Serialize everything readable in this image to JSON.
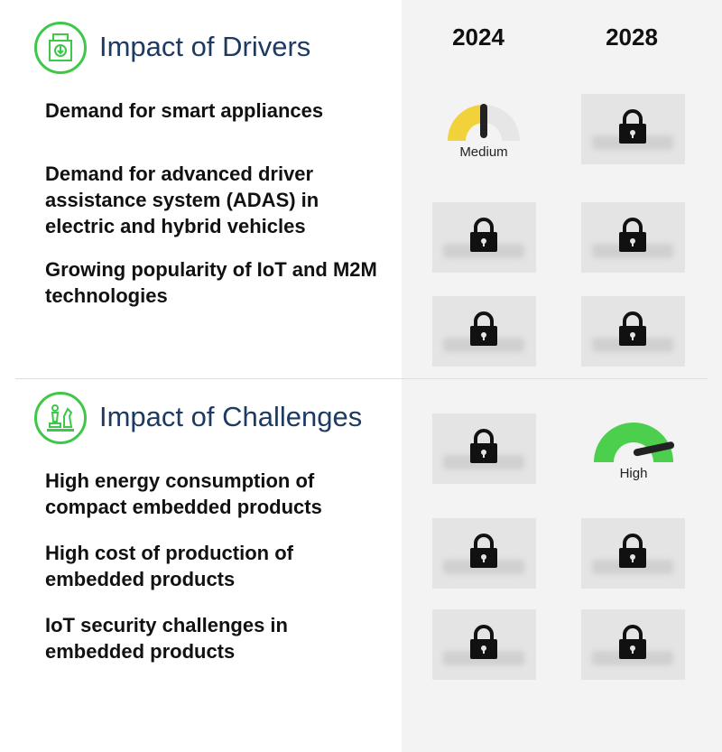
{
  "columns": [
    "2024",
    "2028"
  ],
  "colors": {
    "accent": "#3ec84a",
    "title": "#1d3a63",
    "medium": "#f2d23a",
    "high": "#4ccf4c"
  },
  "drivers": {
    "title": "Impact of Drivers",
    "icon": "appliance-icon",
    "items": [
      {
        "label": "Demand for smart appliances",
        "y2024": {
          "locked": false,
          "level": "Medium"
        },
        "y2028": {
          "locked": true
        }
      },
      {
        "label": "Demand for advanced driver assistance system (ADAS) in electric and hybrid vehicles",
        "y2024": {
          "locked": true
        },
        "y2028": {
          "locked": true
        }
      },
      {
        "label": "Growing popularity of IoT and M2M technologies",
        "y2024": {
          "locked": true
        },
        "y2028": {
          "locked": true
        }
      }
    ]
  },
  "challenges": {
    "title": "Impact of Challenges",
    "icon": "chess-pieces-icon",
    "items": [
      {
        "label": "High energy consumption of compact embedded products",
        "y2024": {
          "locked": true
        },
        "y2028": {
          "locked": false,
          "level": "High"
        }
      },
      {
        "label": "High cost of production of embedded products",
        "y2024": {
          "locked": true
        },
        "y2028": {
          "locked": true
        }
      },
      {
        "label": "IoT security challenges in embedded products",
        "y2024": {
          "locked": true
        },
        "y2028": {
          "locked": true
        }
      }
    ]
  }
}
